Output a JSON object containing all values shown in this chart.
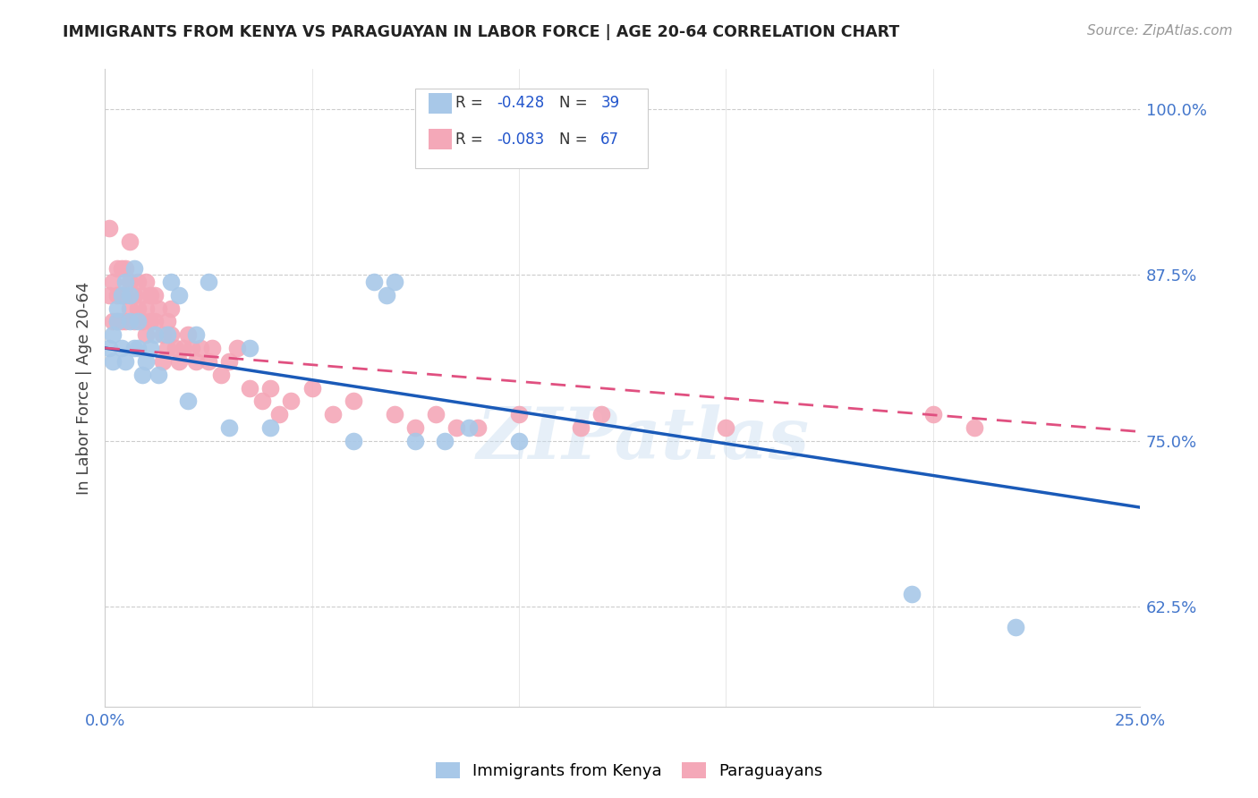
{
  "title": "IMMIGRANTS FROM KENYA VS PARAGUAYAN IN LABOR FORCE | AGE 20-64 CORRELATION CHART",
  "source": "Source: ZipAtlas.com",
  "ylabel": "In Labor Force | Age 20-64",
  "xlim": [
    0.0,
    0.25
  ],
  "ylim": [
    0.55,
    1.03
  ],
  "xticks": [
    0.0,
    0.05,
    0.1,
    0.15,
    0.2,
    0.25
  ],
  "xticklabels": [
    "0.0%",
    "",
    "",
    "",
    "",
    "25.0%"
  ],
  "yticks": [
    0.625,
    0.75,
    0.875,
    1.0
  ],
  "yticklabels": [
    "62.5%",
    "75.0%",
    "87.5%",
    "100.0%"
  ],
  "legend_r_kenya": "-0.428",
  "legend_n_kenya": "39",
  "legend_r_paraguay": "-0.083",
  "legend_n_paraguay": "67",
  "kenya_color": "#a8c8e8",
  "paraguay_color": "#f4a8b8",
  "kenya_line_color": "#1a5ab8",
  "paraguay_line_color": "#e05080",
  "watermark": "ZIPatlas",
  "kenya_line_x0": 0.0,
  "kenya_line_y0": 0.82,
  "kenya_line_x1": 0.25,
  "kenya_line_y1": 0.7,
  "paraguay_line_x0": 0.0,
  "paraguay_line_y0": 0.82,
  "paraguay_line_x1": 0.25,
  "paraguay_line_y1": 0.757,
  "kenya_x": [
    0.001,
    0.002,
    0.002,
    0.003,
    0.003,
    0.004,
    0.004,
    0.005,
    0.005,
    0.006,
    0.006,
    0.007,
    0.007,
    0.008,
    0.008,
    0.009,
    0.01,
    0.011,
    0.012,
    0.013,
    0.015,
    0.016,
    0.018,
    0.02,
    0.022,
    0.025,
    0.03,
    0.035,
    0.04,
    0.06,
    0.065,
    0.068,
    0.07,
    0.075,
    0.082,
    0.088,
    0.1,
    0.195,
    0.22
  ],
  "kenya_y": [
    0.82,
    0.83,
    0.81,
    0.84,
    0.85,
    0.82,
    0.86,
    0.87,
    0.81,
    0.84,
    0.86,
    0.82,
    0.88,
    0.82,
    0.84,
    0.8,
    0.81,
    0.82,
    0.83,
    0.8,
    0.83,
    0.87,
    0.86,
    0.78,
    0.83,
    0.87,
    0.76,
    0.82,
    0.76,
    0.75,
    0.87,
    0.86,
    0.87,
    0.75,
    0.75,
    0.76,
    0.75,
    0.635,
    0.61
  ],
  "paraguay_x": [
    0.001,
    0.001,
    0.002,
    0.002,
    0.003,
    0.003,
    0.003,
    0.004,
    0.004,
    0.004,
    0.005,
    0.005,
    0.005,
    0.006,
    0.006,
    0.006,
    0.007,
    0.007,
    0.008,
    0.008,
    0.009,
    0.009,
    0.01,
    0.01,
    0.01,
    0.011,
    0.011,
    0.012,
    0.012,
    0.013,
    0.014,
    0.014,
    0.015,
    0.015,
    0.016,
    0.016,
    0.017,
    0.018,
    0.019,
    0.02,
    0.021,
    0.022,
    0.023,
    0.025,
    0.026,
    0.028,
    0.03,
    0.032,
    0.035,
    0.038,
    0.04,
    0.042,
    0.045,
    0.05,
    0.055,
    0.06,
    0.07,
    0.075,
    0.08,
    0.085,
    0.09,
    0.1,
    0.115,
    0.12,
    0.15,
    0.2,
    0.21
  ],
  "paraguay_y": [
    0.91,
    0.86,
    0.87,
    0.84,
    0.88,
    0.86,
    0.84,
    0.88,
    0.86,
    0.84,
    0.88,
    0.86,
    0.84,
    0.9,
    0.87,
    0.85,
    0.86,
    0.84,
    0.87,
    0.85,
    0.86,
    0.84,
    0.87,
    0.85,
    0.83,
    0.86,
    0.84,
    0.86,
    0.84,
    0.85,
    0.83,
    0.81,
    0.84,
    0.82,
    0.85,
    0.83,
    0.82,
    0.81,
    0.82,
    0.83,
    0.82,
    0.81,
    0.82,
    0.81,
    0.82,
    0.8,
    0.81,
    0.82,
    0.79,
    0.78,
    0.79,
    0.77,
    0.78,
    0.79,
    0.77,
    0.78,
    0.77,
    0.76,
    0.77,
    0.76,
    0.76,
    0.77,
    0.76,
    0.77,
    0.76,
    0.77,
    0.76
  ]
}
